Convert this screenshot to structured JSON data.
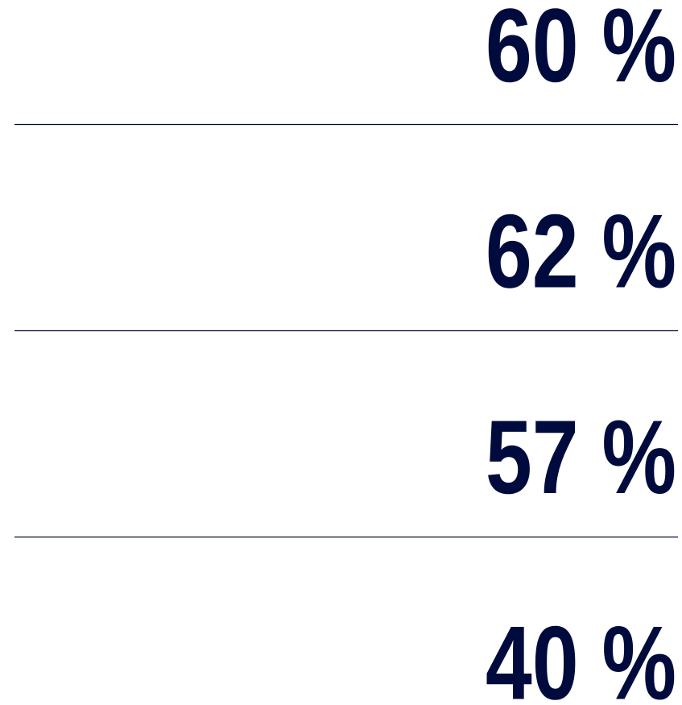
{
  "stats": [
    "60 %",
    "62 %",
    "57 %",
    "40 %"
  ]
}
